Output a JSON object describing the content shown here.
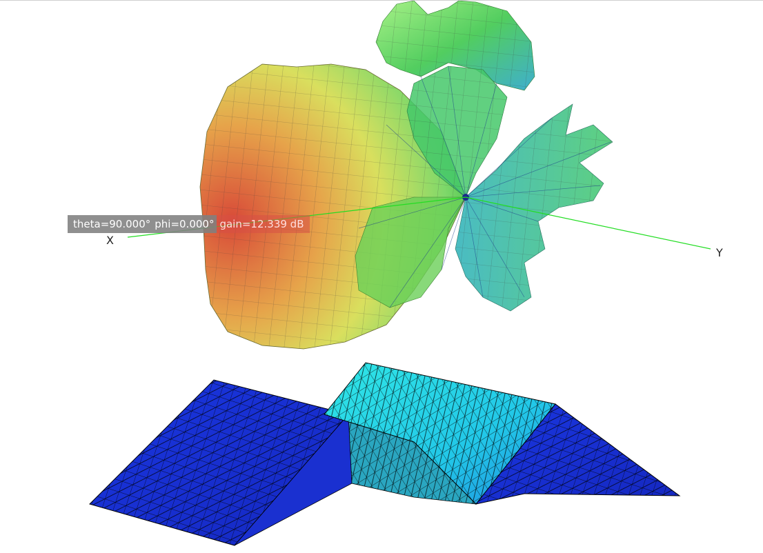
{
  "scene": {
    "axes": {
      "x_label": "X",
      "y_label": "Y"
    },
    "tooltip": {
      "theta": "theta=90.000°",
      "phi": "phi=0.000°",
      "gain": "gain=12.339 dB"
    },
    "colors": {
      "axis_line": "#22dd22",
      "pattern_hot": "#d9543a",
      "pattern_mid": "#d8e060",
      "pattern_green": "#3ec24a",
      "pattern_cool": "#2aa6c8",
      "mesh_low": "#1a2fd8",
      "mesh_high": "#22e4e8",
      "mesh_edge": "#000000"
    },
    "icons": [
      "radiation-pattern-surface",
      "antenna-mesh-surface"
    ]
  }
}
